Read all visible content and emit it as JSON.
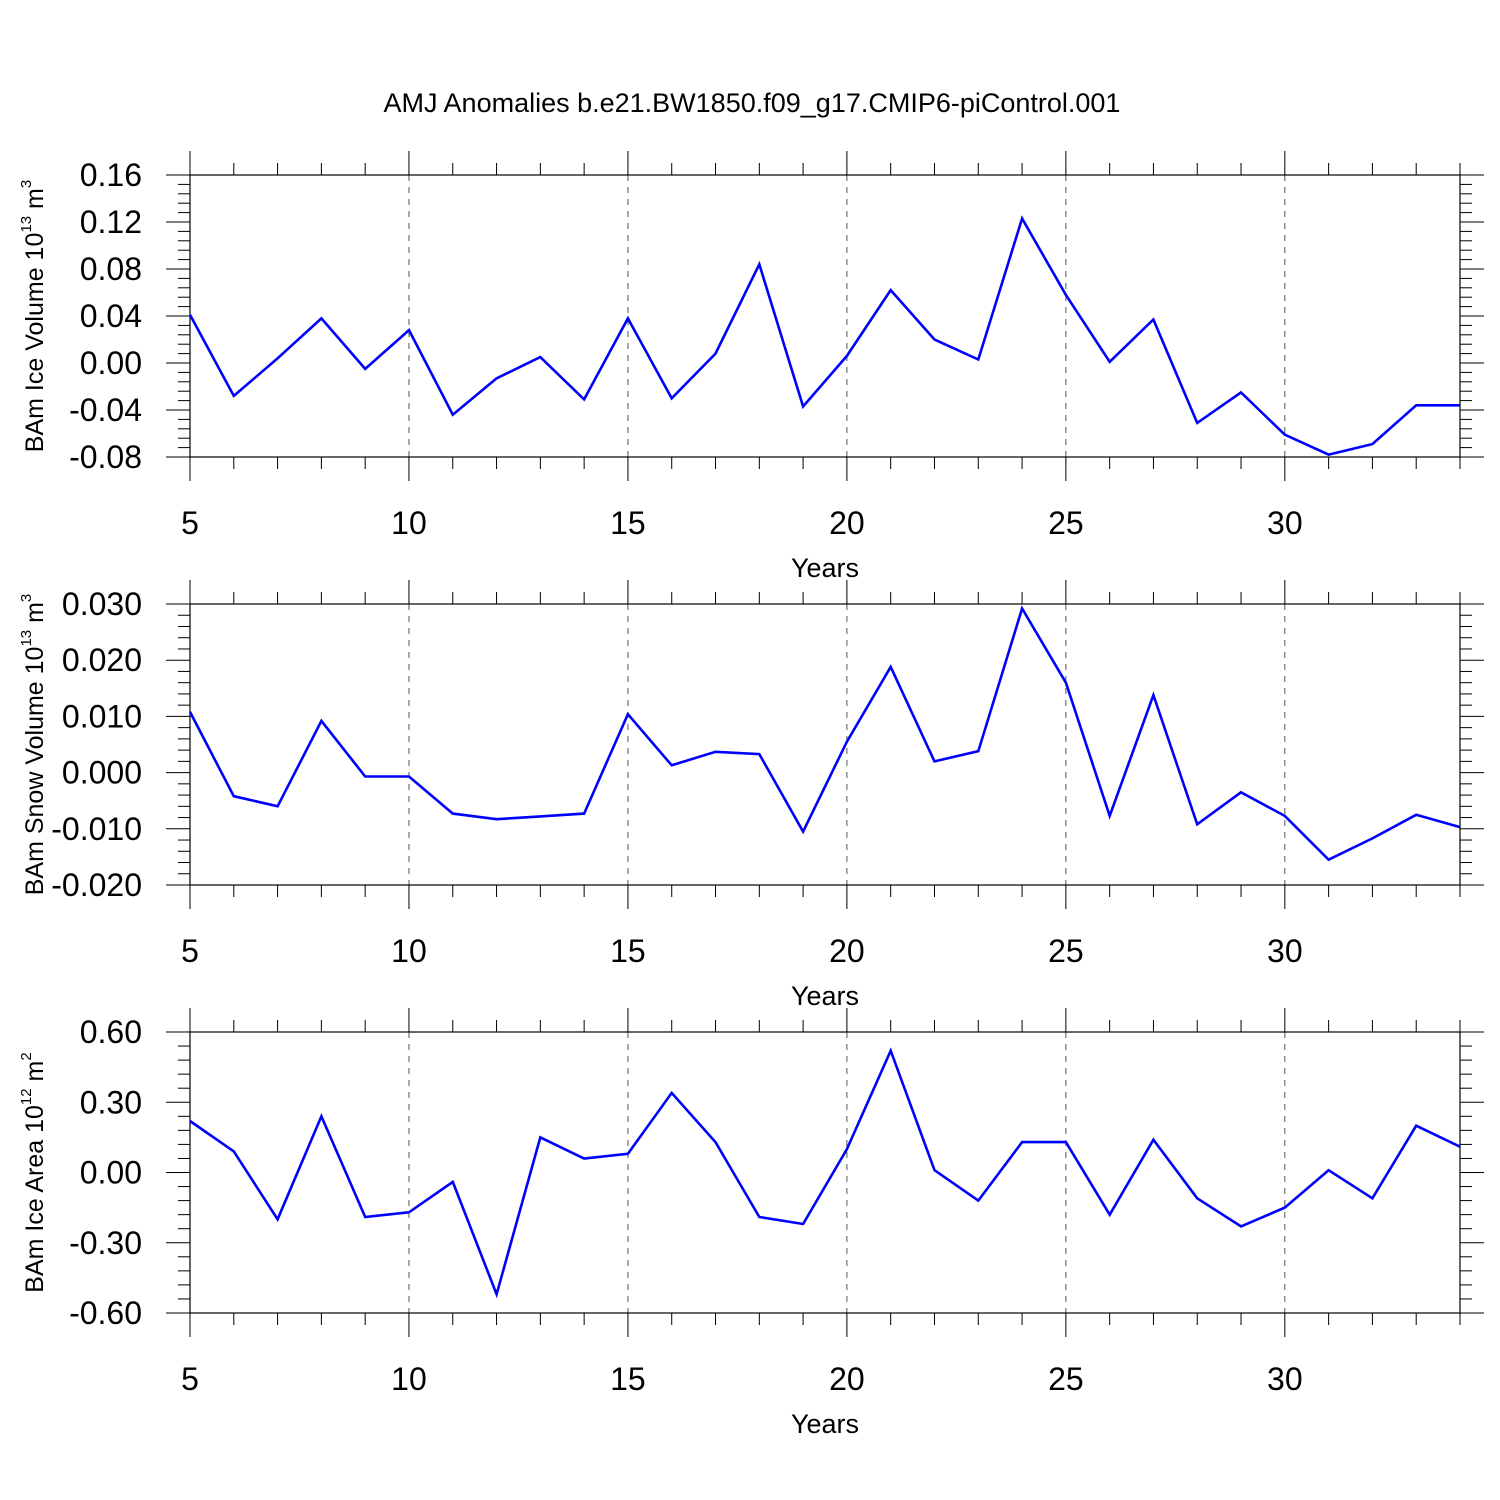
{
  "title": "AMJ Anomalies b.e21.BW1850.f09_g17.CMIP6-piControl.001",
  "colors": {
    "line": "#0000ff",
    "axis": "#000000",
    "grid": "#555555"
  },
  "chart_data": [
    {
      "type": "line",
      "xlabel": "Years",
      "ylabel": {
        "text": "BAm Ice Volume 10",
        "exp": "13",
        "unit": " m",
        "unit_exp": "3"
      },
      "x": [
        5,
        6,
        7,
        8,
        9,
        10,
        11,
        12,
        13,
        14,
        15,
        16,
        17,
        18,
        19,
        20,
        21,
        22,
        23,
        24,
        25,
        26,
        27,
        28,
        29,
        30,
        31,
        32,
        33,
        34
      ],
      "values": [
        0.041,
        -0.028,
        0.004,
        0.038,
        -0.005,
        0.028,
        -0.044,
        -0.013,
        0.005,
        -0.031,
        0.038,
        -0.03,
        0.008,
        0.084,
        -0.037,
        0.006,
        0.062,
        0.02,
        0.003,
        0.123,
        0.058,
        0.001,
        0.037,
        -0.051,
        -0.025,
        -0.061,
        -0.078,
        -0.069,
        -0.036,
        -0.036
      ],
      "xlim": [
        5,
        34
      ],
      "ylim": [
        -0.08,
        0.16
      ],
      "xticks": [
        "5",
        "10",
        "15",
        "20",
        "25",
        "30"
      ],
      "yticks": [
        "-0.08",
        "-0.04",
        "0.00",
        "0.04",
        "0.08",
        "0.12",
        "0.16"
      ],
      "grid": "dashed vertical lines at major x ticks"
    },
    {
      "type": "line",
      "xlabel": "Years",
      "ylabel": {
        "text": "BAm Snow Volume 10",
        "exp": "13",
        "unit": " m",
        "unit_exp": "3"
      },
      "x": [
        5,
        6,
        7,
        8,
        9,
        10,
        11,
        12,
        13,
        14,
        15,
        16,
        17,
        18,
        19,
        20,
        21,
        22,
        23,
        24,
        25,
        26,
        27,
        28,
        29,
        30,
        31,
        32,
        33,
        34
      ],
      "values": [
        0.0108,
        -0.0042,
        -0.006,
        0.0092,
        -0.0007,
        -0.0007,
        -0.0073,
        -0.0083,
        -0.0078,
        -0.0073,
        0.0104,
        0.0013,
        0.0037,
        0.0033,
        -0.0105,
        0.0055,
        0.0188,
        0.002,
        0.0038,
        0.0292,
        0.016,
        -0.0077,
        0.0138,
        -0.0092,
        -0.0035,
        -0.0077,
        -0.0155,
        -0.0117,
        -0.0075,
        -0.0097
      ],
      "xlim": [
        5,
        34
      ],
      "ylim": [
        -0.02,
        0.03
      ],
      "xticks": [
        "5",
        "10",
        "15",
        "20",
        "25",
        "30"
      ],
      "yticks": [
        "-0.020",
        "-0.010",
        "0.000",
        "0.010",
        "0.020",
        "0.030"
      ],
      "grid": "dashed vertical lines at major x ticks"
    },
    {
      "type": "line",
      "xlabel": "Years",
      "ylabel": {
        "text": "BAm Ice Area 10",
        "exp": "12",
        "unit": " m",
        "unit_exp": "2"
      },
      "x": [
        5,
        6,
        7,
        8,
        9,
        10,
        11,
        12,
        13,
        14,
        15,
        16,
        17,
        18,
        19,
        20,
        21,
        22,
        23,
        24,
        25,
        26,
        27,
        28,
        29,
        30,
        31,
        32,
        33,
        34
      ],
      "values": [
        0.22,
        0.09,
        -0.2,
        0.24,
        -0.19,
        -0.17,
        -0.04,
        -0.52,
        0.15,
        0.06,
        0.08,
        0.34,
        0.13,
        -0.19,
        -0.22,
        0.1,
        0.52,
        0.01,
        -0.12,
        0.13,
        0.13,
        -0.18,
        0.14,
        -0.11,
        -0.23,
        -0.15,
        0.01,
        -0.11,
        0.2,
        0.11
      ],
      "xlim": [
        5,
        34
      ],
      "ylim": [
        -0.6,
        0.6
      ],
      "xticks": [
        "5",
        "10",
        "15",
        "20",
        "25",
        "30"
      ],
      "yticks": [
        "-0.60",
        "-0.30",
        "0.00",
        "0.30",
        "0.60"
      ],
      "grid": "dashed vertical lines at major x ticks"
    }
  ]
}
